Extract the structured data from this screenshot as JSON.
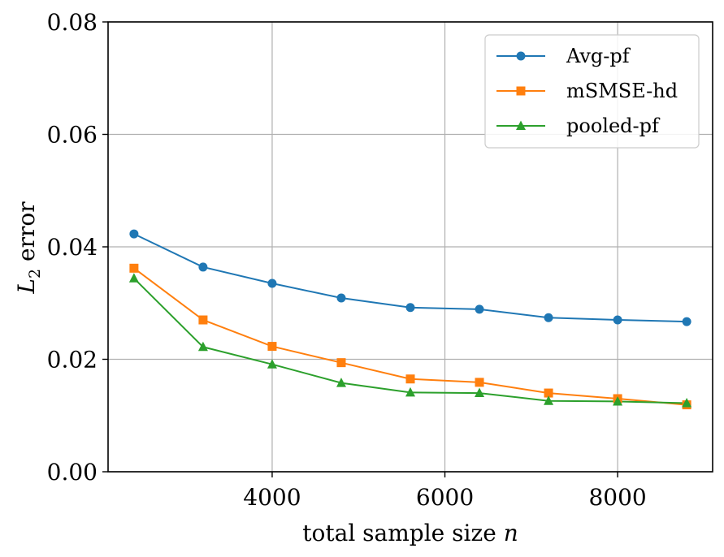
{
  "chart_data": {
    "type": "line",
    "title": "",
    "xlabel": "total sample size n",
    "ylabel": "L2 error",
    "ylabel_main": "L",
    "ylabel_sub": "2",
    "ylabel_rest": " error",
    "xlabel_main": "total sample size ",
    "xlabel_var": "n",
    "xlim": [
      2100,
      9100
    ],
    "ylim": [
      0,
      0.08
    ],
    "x_ticks": [
      4000,
      6000,
      8000
    ],
    "x_tick_labels": [
      "4000",
      "6000",
      "8000"
    ],
    "y_ticks": [
      0,
      0.02,
      0.04,
      0.06,
      0.08
    ],
    "y_tick_labels": [
      "0.00",
      "0.02",
      "0.04",
      "0.06",
      "0.08"
    ],
    "grid": true,
    "legend_position": "top-right",
    "x": [
      2400,
      3200,
      4000,
      4800,
      5600,
      6400,
      7200,
      8000,
      8800
    ],
    "series": [
      {
        "name": "Avg-pf",
        "color": "#1f77b4",
        "marker": "circle",
        "values": [
          0.0423,
          0.0364,
          0.0335,
          0.0309,
          0.0292,
          0.0289,
          0.0274,
          0.027,
          0.0267
        ]
      },
      {
        "name": "mSMSE-hd",
        "color": "#ff7f0e",
        "marker": "square",
        "values": [
          0.0362,
          0.027,
          0.0223,
          0.0194,
          0.0165,
          0.0159,
          0.014,
          0.013,
          0.0119
        ]
      },
      {
        "name": "pooled-pf",
        "color": "#2ca02c",
        "marker": "triangle",
        "values": [
          0.0344,
          0.0222,
          0.0191,
          0.0158,
          0.0141,
          0.014,
          0.0126,
          0.0125,
          0.0122
        ]
      }
    ]
  }
}
